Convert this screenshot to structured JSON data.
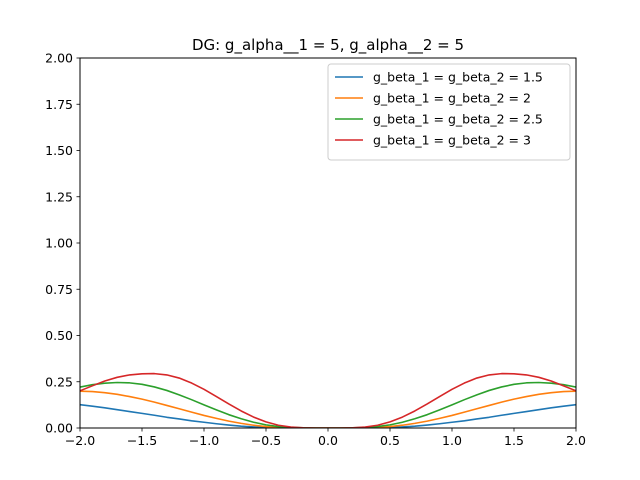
{
  "chart_data": {
    "type": "line",
    "title": "DG: g_alpha__1 = 5, g_alpha__2 = 5",
    "xlabel": "",
    "ylabel": "",
    "xlim": [
      -2.0,
      2.0
    ],
    "ylim": [
      0.0,
      2.0
    ],
    "xticks": [
      -2.0,
      -1.5,
      -1.0,
      -0.5,
      0.0,
      0.5,
      1.0,
      1.5,
      2.0
    ],
    "xtick_labels": [
      "−2.0",
      "−1.5",
      "−1.0",
      "−0.5",
      "0.0",
      "0.5",
      "1.0",
      "1.5",
      "2.0"
    ],
    "yticks": [
      0.0,
      0.25,
      0.5,
      0.75,
      1.0,
      1.25,
      1.5,
      1.75,
      2.0
    ],
    "ytick_labels": [
      "0.00",
      "0.25",
      "0.50",
      "0.75",
      "1.00",
      "1.25",
      "1.50",
      "1.75",
      "2.00"
    ],
    "grid": false,
    "legend_position": "top-right",
    "x": [
      -2.0,
      -1.9,
      -1.8,
      -1.7,
      -1.6,
      -1.5,
      -1.4,
      -1.3,
      -1.2,
      -1.1,
      -1.0,
      -0.9,
      -0.8,
      -0.7,
      -0.6,
      -0.5,
      -0.4,
      -0.3,
      -0.2,
      -0.1,
      0.0,
      0.1,
      0.2,
      0.3,
      0.4,
      0.5,
      0.6,
      0.7,
      0.8,
      0.9,
      1.0,
      1.1,
      1.2,
      1.3,
      1.4,
      1.5,
      1.6,
      1.7,
      1.8,
      1.9,
      2.0
    ],
    "series": [
      {
        "name": "g_beta_1 = g_beta_2 = 1.5",
        "color": "#1f77b4",
        "values": [
          0.126,
          0.118,
          0.109,
          0.099,
          0.089,
          0.079,
          0.069,
          0.058,
          0.049,
          0.039,
          0.031,
          0.023,
          0.016,
          0.01,
          0.006,
          0.003,
          0.001,
          0.0,
          0.0,
          0.0,
          0.0,
          0.0,
          0.0,
          0.0,
          0.001,
          0.003,
          0.006,
          0.01,
          0.016,
          0.023,
          0.031,
          0.039,
          0.049,
          0.058,
          0.069,
          0.079,
          0.089,
          0.099,
          0.109,
          0.118,
          0.126
        ]
      },
      {
        "name": "g_beta_1 = g_beta_2 = 2",
        "color": "#ff7f0e",
        "values": [
          0.199,
          0.197,
          0.191,
          0.182,
          0.17,
          0.156,
          0.14,
          0.122,
          0.104,
          0.086,
          0.068,
          0.052,
          0.037,
          0.025,
          0.015,
          0.008,
          0.003,
          0.001,
          0.0,
          0.0,
          0.0,
          0.0,
          0.0,
          0.001,
          0.003,
          0.008,
          0.015,
          0.025,
          0.037,
          0.052,
          0.068,
          0.086,
          0.104,
          0.122,
          0.14,
          0.156,
          0.17,
          0.182,
          0.191,
          0.197,
          0.199
        ]
      },
      {
        "name": "g_beta_1 = g_beta_2 = 2.5",
        "color": "#2ca02c",
        "values": [
          0.221,
          0.234,
          0.242,
          0.246,
          0.244,
          0.236,
          0.222,
          0.203,
          0.179,
          0.153,
          0.125,
          0.098,
          0.072,
          0.05,
          0.031,
          0.017,
          0.008,
          0.003,
          0.001,
          0.0,
          0.0,
          0.0,
          0.001,
          0.003,
          0.008,
          0.017,
          0.031,
          0.05,
          0.072,
          0.098,
          0.125,
          0.153,
          0.179,
          0.203,
          0.222,
          0.236,
          0.244,
          0.246,
          0.242,
          0.234,
          0.221
        ]
      },
      {
        "name": "g_beta_1 = g_beta_2 = 3",
        "color": "#d62728",
        "values": [
          0.201,
          0.228,
          0.254,
          0.274,
          0.287,
          0.293,
          0.294,
          0.287,
          0.27,
          0.243,
          0.209,
          0.17,
          0.13,
          0.092,
          0.059,
          0.033,
          0.015,
          0.005,
          0.001,
          0.0,
          0.0,
          0.0,
          0.001,
          0.005,
          0.015,
          0.033,
          0.059,
          0.092,
          0.13,
          0.17,
          0.209,
          0.243,
          0.27,
          0.287,
          0.294,
          0.293,
          0.287,
          0.274,
          0.254,
          0.228,
          0.201
        ]
      }
    ]
  }
}
